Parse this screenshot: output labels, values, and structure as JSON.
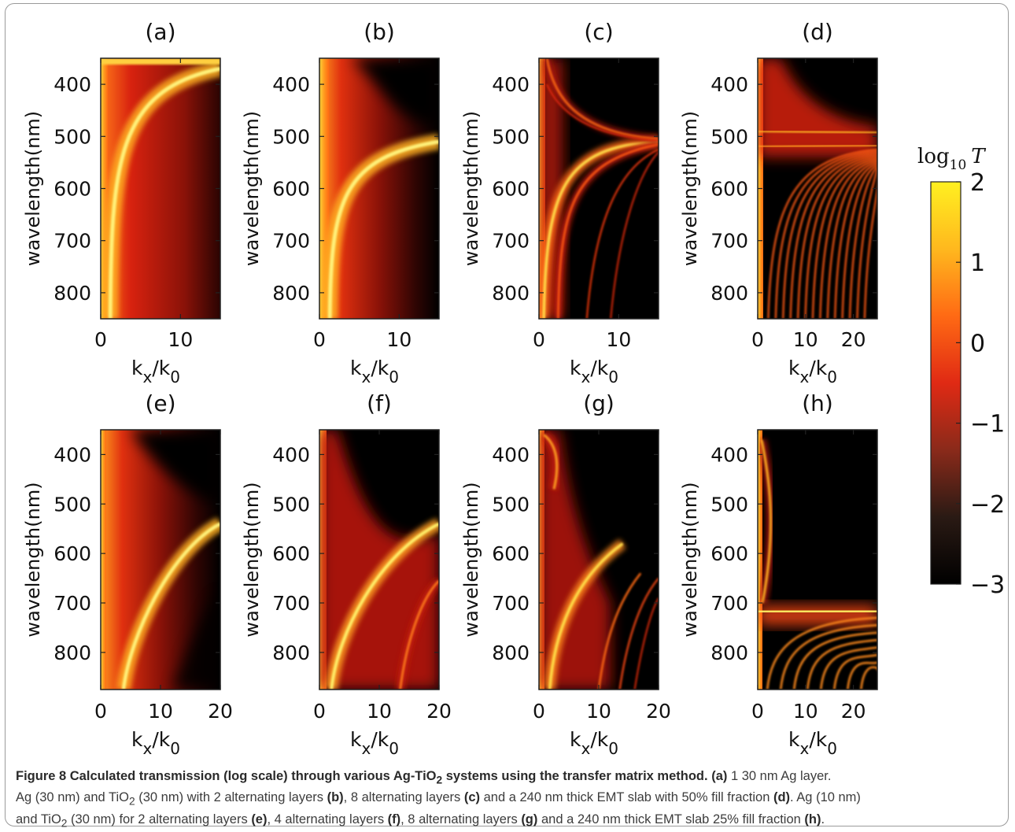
{
  "chart_data": [
    {
      "type": "heatmap",
      "title": "(a)",
      "ylabel": "wavelength(nm)",
      "xlabel_main": "k",
      "xlabel_sub": "x",
      "xlabel_mid": "/k",
      "xlabel_sub2": "0",
      "xlim": [
        0,
        15
      ],
      "ylim": [
        850,
        350
      ],
      "xticks": [
        0,
        10
      ],
      "yticks": [
        400,
        500,
        600,
        700,
        800
      ],
      "pattern": "single_ag"
    },
    {
      "type": "heatmap",
      "title": "(b)",
      "ylabel": "wavelength(nm)",
      "xlabel_main": "k",
      "xlabel_sub": "x",
      "xlabel_mid": "/k",
      "xlabel_sub2": "0",
      "xlim": [
        0,
        15
      ],
      "ylim": [
        850,
        350
      ],
      "xticks": [
        0,
        10
      ],
      "yticks": [
        400,
        500,
        600,
        700,
        800
      ],
      "pattern": "resonance_510"
    },
    {
      "type": "heatmap",
      "title": "(c)",
      "ylabel": "wavelength(nm)",
      "xlabel_main": "k",
      "xlabel_sub": "x",
      "xlabel_mid": "/k",
      "xlabel_sub2": "0",
      "xlim": [
        0,
        15
      ],
      "ylim": [
        850,
        350
      ],
      "xticks": [
        0,
        10
      ],
      "yticks": [
        400,
        500,
        600,
        700,
        800
      ],
      "pattern": "multi_510"
    },
    {
      "type": "heatmap",
      "title": "(d)",
      "ylabel": "wavelength(nm)",
      "xlabel_main": "k",
      "xlabel_sub": "x",
      "xlabel_mid": "/k",
      "xlabel_sub2": "0",
      "xlim": [
        0,
        25
      ],
      "ylim": [
        850,
        350
      ],
      "xticks": [
        0,
        10,
        20
      ],
      "yticks": [
        400,
        500,
        600,
        700,
        800
      ],
      "pattern": "emt_505"
    },
    {
      "type": "heatmap",
      "title": "(e)",
      "ylabel": "wavelength(nm)",
      "xlabel_main": "k",
      "xlabel_sub": "x",
      "xlabel_mid": "/k",
      "xlabel_sub2": "0",
      "xlim": [
        0,
        20
      ],
      "ylim": [
        875,
        350
      ],
      "xticks": [
        0,
        10,
        20
      ],
      "yticks": [
        400,
        500,
        600,
        700,
        800
      ],
      "pattern": "rising_540"
    },
    {
      "type": "heatmap",
      "title": "(f)",
      "ylabel": "wavelength(nm)",
      "xlabel_main": "k",
      "xlabel_sub": "x",
      "xlabel_mid": "/k",
      "xlabel_sub2": "0",
      "xlim": [
        0,
        20
      ],
      "ylim": [
        875,
        350
      ],
      "xticks": [
        0,
        10,
        20
      ],
      "yticks": [
        400,
        500,
        600,
        700,
        800
      ],
      "pattern": "rising_two"
    },
    {
      "type": "heatmap",
      "title": "(g)",
      "ylabel": "wavelength(nm)",
      "xlabel_main": "k",
      "xlabel_sub": "x",
      "xlabel_mid": "/k",
      "xlabel_sub2": "0",
      "xlim": [
        0,
        20
      ],
      "ylim": [
        875,
        350
      ],
      "xticks": [
        0,
        10,
        20
      ],
      "yticks": [
        400,
        500,
        600,
        700,
        800
      ],
      "pattern": "rising_multi"
    },
    {
      "type": "heatmap",
      "title": "(h)",
      "ylabel": "wavelength(nm)",
      "xlabel_main": "k",
      "xlabel_sub": "x",
      "xlabel_mid": "/k",
      "xlabel_sub2": "0",
      "xlim": [
        0,
        25
      ],
      "ylim": [
        875,
        350
      ],
      "xticks": [
        0,
        10,
        20
      ],
      "yticks": [
        400,
        500,
        600,
        700,
        800
      ],
      "pattern": "emt_715"
    }
  ],
  "colorbar": {
    "label_main": "log",
    "label_sub": "10",
    "label_var": "T",
    "range": [
      -3,
      2
    ],
    "ticks": [
      {
        "value": 2,
        "label": "2"
      },
      {
        "value": 1,
        "label": "1"
      },
      {
        "value": 0,
        "label": "0"
      },
      {
        "value": -1,
        "label": "−1"
      },
      {
        "value": -2,
        "label": "−2"
      },
      {
        "value": -3,
        "label": "−3"
      }
    ],
    "colors": [
      "#000000",
      "#2a1a14",
      "#8a2a1a",
      "#e02a14",
      "#ff6a14",
      "#ffb81e",
      "#fff020"
    ]
  },
  "caption": {
    "title_a": "Figure 8 Calculated transmission (log scale) through various Ag-TiO",
    "title_sub": "2",
    "title_b": " systems using the transfer matrix method.",
    "l1_a": "(a)",
    "l1_b": " 1 30 nm Ag layer.",
    "l2_a": "Ag (30 nm) and TiO",
    "l2_sub": "2",
    "l2_b": " (30 nm) with 2 alternating layers ",
    "l2_c": "(b)",
    "l2_d": ", 8 alternating layers ",
    "l2_e": "(c)",
    "l2_f": " and a 240 nm thick EMT slab with 50% fill fraction ",
    "l2_g": "(d)",
    "l2_h": ". Ag (10 nm)",
    "l3_a": "and TiO",
    "l3_sub": "2",
    "l3_b": " (30 nm) for 2 alternating layers ",
    "l3_c": "(e)",
    "l3_d": ", 4 alternating layers ",
    "l3_e": "(f)",
    "l3_f": ", 8 alternating layers ",
    "l3_g": "(g)",
    "l3_h": " and a 240 nm thick EMT slab 25% fill fraction ",
    "l3_i": "(h)",
    "l3_j": "."
  }
}
